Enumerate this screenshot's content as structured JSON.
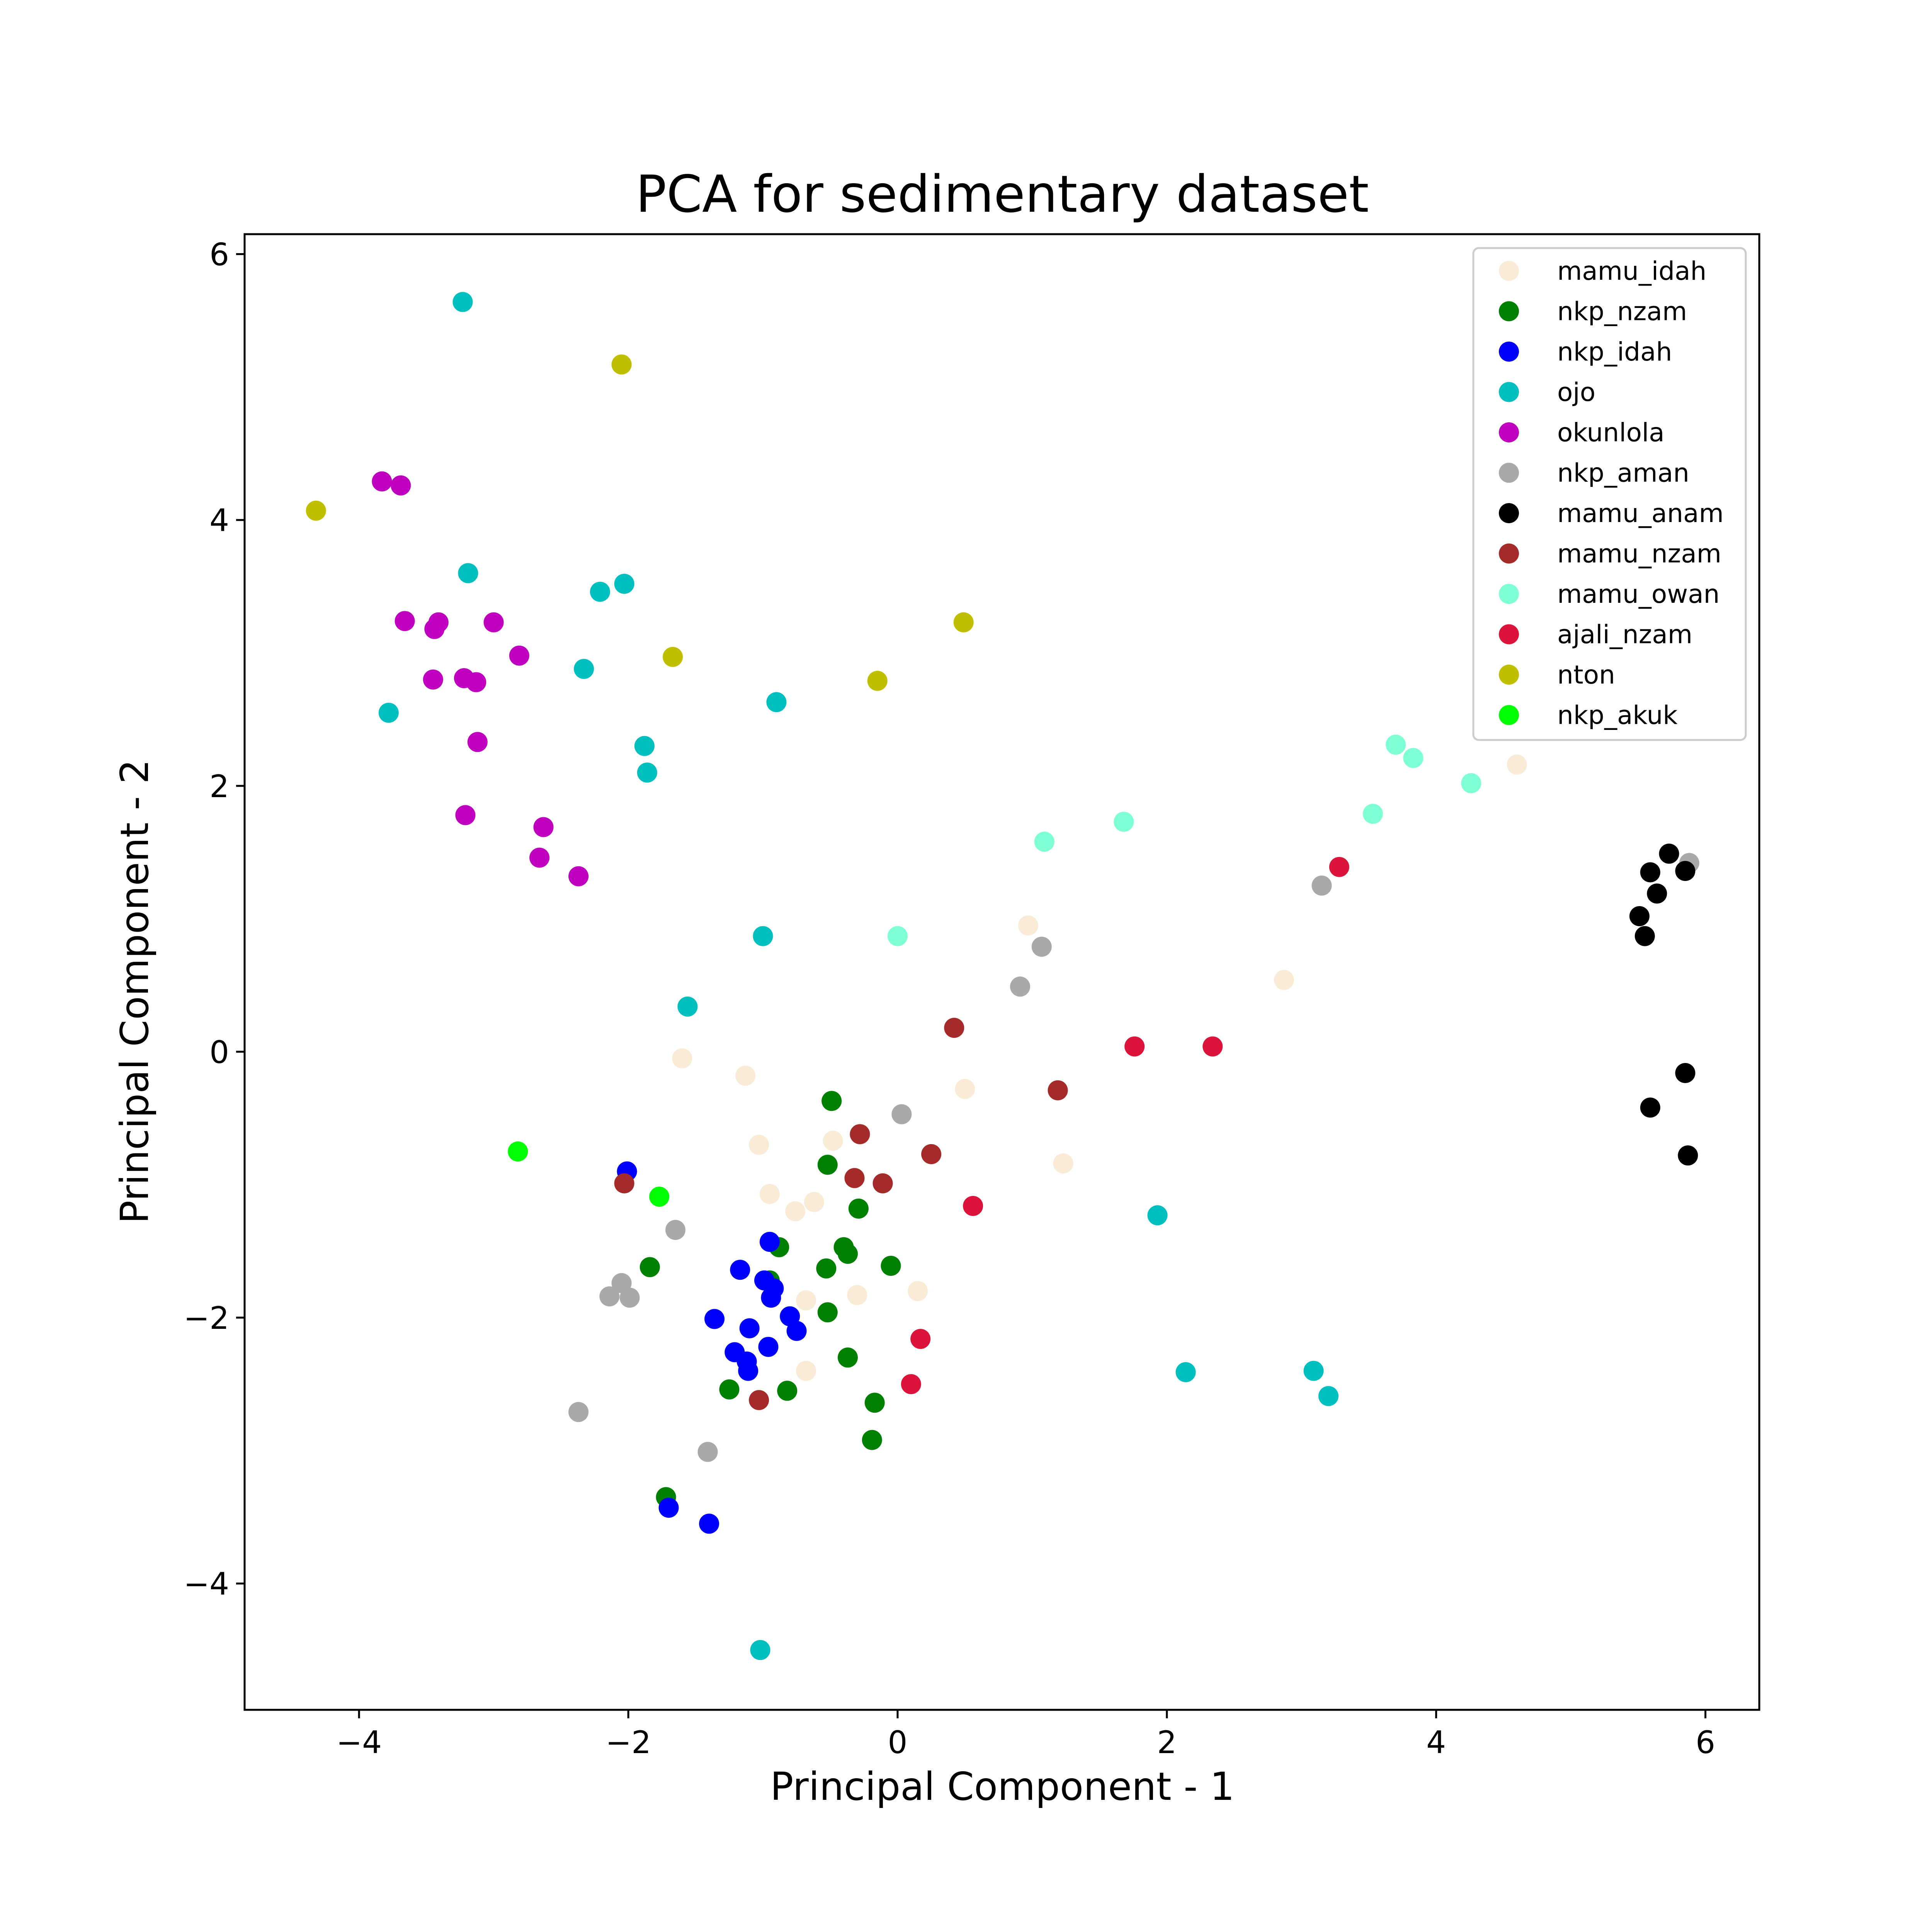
{
  "chart_data": {
    "type": "scatter",
    "title": "PCA for sedimentary dataset",
    "xlabel": "Principal Component - 1",
    "ylabel": "Principal Component - 2",
    "xlim": [
      -4.85,
      6.4
    ],
    "ylim": [
      -4.95,
      6.15
    ],
    "xticks": [
      -4,
      -2,
      0,
      2,
      4,
      6
    ],
    "yticks": [
      -4,
      -2,
      0,
      2,
      4,
      6
    ],
    "xtick_labels": [
      "−4",
      "−2",
      "0",
      "2",
      "4",
      "6"
    ],
    "ytick_labels": [
      "−4",
      "−2",
      "0",
      "2",
      "4",
      "6"
    ],
    "grid": false,
    "legend_position": "top-right",
    "series": [
      {
        "name": "mamu_idah",
        "color": "#faebd7",
        "points": [
          [
            -1.6,
            -0.05
          ],
          [
            -1.13,
            -0.18
          ],
          [
            -1.03,
            -0.7
          ],
          [
            -0.95,
            -1.07
          ],
          [
            -0.76,
            -1.2
          ],
          [
            -0.62,
            -1.13
          ],
          [
            -0.68,
            -1.87
          ],
          [
            -0.3,
            -1.83
          ],
          [
            0.15,
            -1.8
          ],
          [
            -0.68,
            -2.4
          ],
          [
            -0.48,
            -0.67
          ],
          [
            0.5,
            -0.28
          ],
          [
            1.23,
            -0.84
          ],
          [
            0.97,
            0.95
          ],
          [
            2.87,
            0.54
          ],
          [
            4.6,
            2.16
          ]
        ]
      },
      {
        "name": "nkp_nzam",
        "color": "#008000",
        "points": [
          [
            -0.49,
            -0.37
          ],
          [
            -0.52,
            -0.85
          ],
          [
            -0.29,
            -1.18
          ],
          [
            -0.88,
            -1.47
          ],
          [
            -0.4,
            -1.47
          ],
          [
            -0.37,
            -1.52
          ],
          [
            -0.53,
            -1.63
          ],
          [
            -0.05,
            -1.61
          ],
          [
            -1.84,
            -1.62
          ],
          [
            -0.52,
            -1.96
          ],
          [
            -0.37,
            -2.3
          ],
          [
            -1.25,
            -2.54
          ],
          [
            -0.82,
            -2.55
          ],
          [
            -0.17,
            -2.64
          ],
          [
            -0.19,
            -2.92
          ],
          [
            -1.72,
            -3.35
          ],
          [
            -0.95,
            -1.72
          ]
        ]
      },
      {
        "name": "nkp_idah",
        "color": "#0000ff",
        "points": [
          [
            -2.01,
            -0.9
          ],
          [
            -0.95,
            -1.43
          ],
          [
            -1.17,
            -1.64
          ],
          [
            -0.99,
            -1.72
          ],
          [
            -0.92,
            -1.78
          ],
          [
            -0.94,
            -1.85
          ],
          [
            -1.36,
            -2.01
          ],
          [
            -0.8,
            -1.99
          ],
          [
            -0.75,
            -2.1
          ],
          [
            -1.1,
            -2.08
          ],
          [
            -0.96,
            -2.22
          ],
          [
            -1.21,
            -2.26
          ],
          [
            -1.12,
            -2.33
          ],
          [
            -1.11,
            -2.4
          ],
          [
            -1.7,
            -3.43
          ],
          [
            -1.4,
            -3.55
          ]
        ]
      },
      {
        "name": "ojo",
        "color": "#00bfbf",
        "points": [
          [
            -3.23,
            5.64
          ],
          [
            -3.19,
            3.6
          ],
          [
            -2.21,
            3.46
          ],
          [
            -2.03,
            3.52
          ],
          [
            -2.33,
            2.88
          ],
          [
            -0.9,
            2.63
          ],
          [
            -3.78,
            2.55
          ],
          [
            -1.88,
            2.3
          ],
          [
            -1.86,
            2.1
          ],
          [
            -1.0,
            0.87
          ],
          [
            -1.56,
            0.34
          ],
          [
            1.93,
            -1.23
          ],
          [
            2.14,
            -2.41
          ],
          [
            3.09,
            -2.4
          ],
          [
            3.2,
            -2.59
          ],
          [
            -1.02,
            -4.5
          ]
        ]
      },
      {
        "name": "okunlola",
        "color": "#bf00bf",
        "points": [
          [
            -3.83,
            4.29
          ],
          [
            -3.69,
            4.26
          ],
          [
            -3.66,
            3.24
          ],
          [
            -3.41,
            3.23
          ],
          [
            -3.44,
            3.18
          ],
          [
            -3.0,
            3.23
          ],
          [
            -2.81,
            2.98
          ],
          [
            -3.45,
            2.8
          ],
          [
            -3.22,
            2.81
          ],
          [
            -3.13,
            2.78
          ],
          [
            -3.12,
            2.33
          ],
          [
            -3.21,
            1.78
          ],
          [
            -2.63,
            1.69
          ],
          [
            -2.66,
            1.46
          ],
          [
            -2.37,
            1.32
          ]
        ]
      },
      {
        "name": "nkp_aman",
        "color": "#a9a9a9",
        "points": [
          [
            5.88,
            1.42
          ],
          [
            3.15,
            1.25
          ],
          [
            1.07,
            0.79
          ],
          [
            0.91,
            0.49
          ],
          [
            0.03,
            -0.47
          ],
          [
            -1.65,
            -1.34
          ],
          [
            -2.05,
            -1.74
          ],
          [
            -2.14,
            -1.84
          ],
          [
            -1.99,
            -1.85
          ],
          [
            -2.37,
            -2.71
          ],
          [
            -1.41,
            -3.01
          ]
        ]
      },
      {
        "name": "mamu_anam",
        "color": "#000000",
        "points": [
          [
            5.73,
            1.49
          ],
          [
            5.59,
            1.35
          ],
          [
            5.85,
            1.36
          ],
          [
            5.64,
            1.19
          ],
          [
            5.51,
            1.02
          ],
          [
            5.55,
            0.87
          ],
          [
            5.85,
            -0.16
          ],
          [
            5.59,
            -0.42
          ],
          [
            5.87,
            -0.78
          ]
        ]
      },
      {
        "name": "mamu_nzam",
        "color": "#a52a2a",
        "points": [
          [
            0.42,
            0.18
          ],
          [
            1.19,
            -0.29
          ],
          [
            -0.28,
            -0.62
          ],
          [
            0.25,
            -0.77
          ],
          [
            -0.32,
            -0.95
          ],
          [
            -0.11,
            -0.99
          ],
          [
            -2.03,
            -0.99
          ],
          [
            -1.03,
            -2.62
          ]
        ]
      },
      {
        "name": "mamu_owan",
        "color": "#7fffd4",
        "points": [
          [
            3.7,
            2.31
          ],
          [
            3.83,
            2.21
          ],
          [
            4.26,
            2.02
          ],
          [
            3.53,
            1.79
          ],
          [
            1.68,
            1.73
          ],
          [
            1.09,
            1.58
          ],
          [
            0.0,
            0.87
          ]
        ]
      },
      {
        "name": "ajali_nzam",
        "color": "#dc143c",
        "points": [
          [
            3.28,
            1.39
          ],
          [
            1.76,
            0.04
          ],
          [
            2.34,
            0.04
          ],
          [
            0.56,
            -1.16
          ],
          [
            0.17,
            -2.16
          ],
          [
            0.1,
            -2.5
          ]
        ]
      },
      {
        "name": "nton",
        "color": "#bfbf00",
        "points": [
          [
            -2.05,
            5.17
          ],
          [
            -4.32,
            4.07
          ],
          [
            0.49,
            3.23
          ],
          [
            -1.67,
            2.97
          ],
          [
            -0.15,
            2.79
          ]
        ]
      },
      {
        "name": "nkp_akuk",
        "color": "#00ff00",
        "points": [
          [
            -2.82,
            -0.75
          ],
          [
            -1.77,
            -1.09
          ]
        ]
      }
    ]
  }
}
